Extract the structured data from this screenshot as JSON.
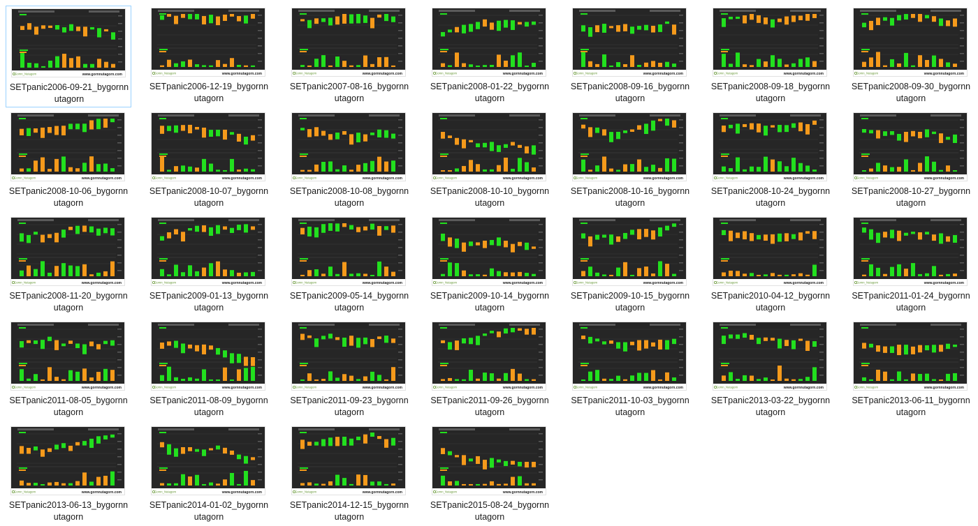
{
  "explorer": {
    "files": [
      {
        "name": "SETpanic2006-09-21_bygornnutagorn",
        "line1": "SETpanic2006-09-21_bygornn",
        "line2": "utagorn",
        "selected": true
      },
      {
        "name": "SETpanic2006-12-19_bygornnutagorn",
        "line1": "SETpanic2006-12-19_bygornn",
        "line2": "utagorn"
      },
      {
        "name": "SETpanic2007-08-16_bygornnutagorn",
        "line1": "SETpanic2007-08-16_bygornn",
        "line2": "utagorn"
      },
      {
        "name": "SETpanic2008-01-22_bygornnutagorn",
        "line1": "SETpanic2008-01-22_bygornn",
        "line2": "utagorn"
      },
      {
        "name": "SETpanic2008-09-16_bygornnutagorn",
        "line1": "SETpanic2008-09-16_bygornn",
        "line2": "utagorn"
      },
      {
        "name": "SETpanic2008-09-18_bygornnutagorn",
        "line1": "SETpanic2008-09-18_bygornn",
        "line2": "utagorn"
      },
      {
        "name": "SETpanic2008-09-30_bygornnutagorn",
        "line1": "SETpanic2008-09-30_bygornn",
        "line2": "utagorn"
      },
      {
        "name": "SETpanic2008-10-06_bygornnutagorn",
        "line1": "SETpanic2008-10-06_bygornn",
        "line2": "utagorn"
      },
      {
        "name": "SETpanic2008-10-07_bygornnutagorn",
        "line1": "SETpanic2008-10-07_bygornn",
        "line2": "utagorn"
      },
      {
        "name": "SETpanic2008-10-08_bygornnutagorn",
        "line1": "SETpanic2008-10-08_bygornn",
        "line2": "utagorn"
      },
      {
        "name": "SETpanic2008-10-10_bygornnutagorn",
        "line1": "SETpanic2008-10-10_bygornn",
        "line2": "utagorn"
      },
      {
        "name": "SETpanic2008-10-16_bygornnutagorn",
        "line1": "SETpanic2008-10-16_bygornn",
        "line2": "utagorn"
      },
      {
        "name": "SETpanic2008-10-24_bygornnutagorn",
        "line1": "SETpanic2008-10-24_bygornn",
        "line2": "utagorn"
      },
      {
        "name": "SETpanic2008-10-27_bygornnutagorn",
        "line1": "SETpanic2008-10-27_bygornn",
        "line2": "utagorn"
      },
      {
        "name": "SETpanic2008-11-20_bygornnutagorn",
        "line1": "SETpanic2008-11-20_bygornn",
        "line2": "utagorn"
      },
      {
        "name": "SETpanic2009-01-13_bygornnutagorn",
        "line1": "SETpanic2009-01-13_bygornn",
        "line2": "utagorn"
      },
      {
        "name": "SETpanic2009-05-14_bygornnutagorn",
        "line1": "SETpanic2009-05-14_bygornn",
        "line2": "utagorn"
      },
      {
        "name": "SETpanic2009-10-14_bygornnutagorn",
        "line1": "SETpanic2009-10-14_bygornn",
        "line2": "utagorn"
      },
      {
        "name": "SETpanic2009-10-15_bygornnutagorn",
        "line1": "SETpanic2009-10-15_bygornn",
        "line2": "utagorn"
      },
      {
        "name": "SETpanic2010-04-12_bygornnutagorn",
        "line1": "SETpanic2010-04-12_bygornn",
        "line2": "utagorn"
      },
      {
        "name": "SETpanic2011-01-24_bygornnutagorn",
        "line1": "SETpanic2011-01-24_bygornn",
        "line2": "utagorn"
      },
      {
        "name": "SETpanic2011-08-05_bygornnutagorn",
        "line1": "SETpanic2011-08-05_bygornn",
        "line2": "utagorn"
      },
      {
        "name": "SETpanic2011-08-09_bygornnutagorn",
        "line1": "SETpanic2011-08-09_bygornn",
        "line2": "utagorn"
      },
      {
        "name": "SETpanic2011-09-23_bygornnutagorn",
        "line1": "SETpanic2011-09-23_bygornn",
        "line2": "utagorn"
      },
      {
        "name": "SETpanic2011-09-26_bygornnutagorn",
        "line1": "SETpanic2011-09-26_bygornn",
        "line2": "utagorn"
      },
      {
        "name": "SETpanic2011-10-03_bygornnutagorn",
        "line1": "SETpanic2011-10-03_bygornn",
        "line2": "utagorn"
      },
      {
        "name": "SETpanic2013-03-22_bygornnutagorn",
        "line1": "SETpanic2013-03-22_bygornn",
        "line2": "utagorn"
      },
      {
        "name": "SETpanic2013-06-11_bygornnutagorn",
        "line1": "SETpanic2013-06-11_bygornn",
        "line2": "utagorn"
      },
      {
        "name": "SETpanic2013-06-13_bygornnutagorn",
        "line1": "SETpanic2013-06-13_bygornn",
        "line2": "utagorn"
      },
      {
        "name": "SETpanic2014-01-02_bygornnutagorn",
        "line1": "SETpanic2014-01-02_bygornn",
        "line2": "utagorn"
      },
      {
        "name": "SETpanic2014-12-15_bygornnutagorn",
        "line1": "SETpanic2014-12-15_bygornn",
        "line2": "utagorn"
      },
      {
        "name": "SETpanic2015-08-24_bygornnutagorn",
        "line1": "SETpanic2015-08-24_bygornn",
        "line2": "utagorn"
      }
    ],
    "thumbnail": {
      "website": "www.gornnutagorn.com",
      "logo_text": "Gornn_Nutagorn"
    },
    "colors": {
      "up": "#22e01e",
      "down": "#f59a1b",
      "chart_bg": "#262626",
      "selection_border": "#99d1ff"
    }
  }
}
